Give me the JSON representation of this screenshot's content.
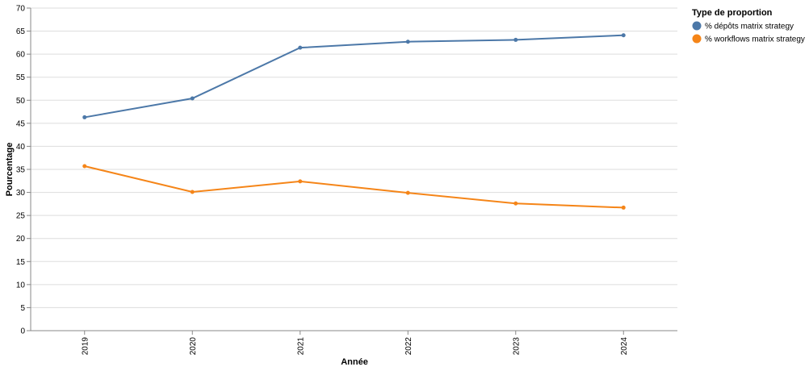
{
  "chart_data": {
    "type": "line",
    "x": [
      "2019",
      "2020",
      "2021",
      "2022",
      "2023",
      "2024"
    ],
    "xlabel": "Année",
    "ylabel": "Pourcentage",
    "ylim": [
      0,
      70
    ],
    "yticks": [
      0,
      5,
      10,
      15,
      20,
      25,
      30,
      35,
      40,
      45,
      50,
      55,
      60,
      65,
      70
    ],
    "grid": true,
    "legend": {
      "title": "Type de proportion",
      "position": "top-right"
    },
    "series": [
      {
        "name": "% dépôts matrix strategy",
        "color": "#4c78a8",
        "values": [
          46.3,
          50.4,
          61.4,
          62.7,
          63.1,
          64.1
        ]
      },
      {
        "name": "% workflows matrix strategy",
        "color": "#f58518",
        "values": [
          35.7,
          30.1,
          32.4,
          29.9,
          27.6,
          26.7
        ]
      }
    ]
  }
}
